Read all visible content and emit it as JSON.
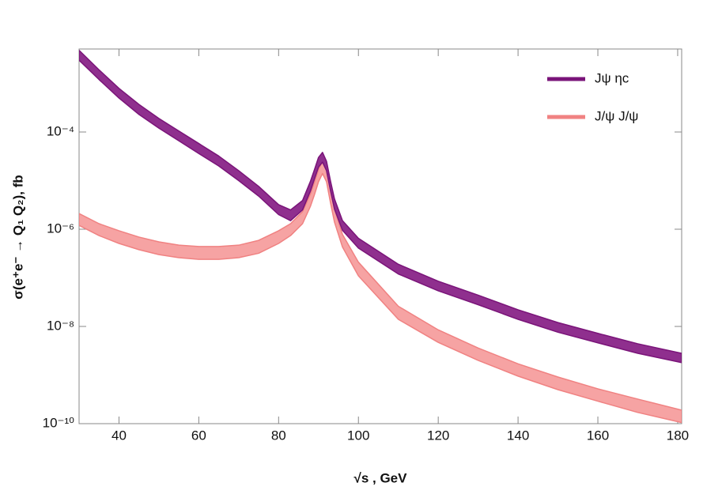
{
  "chart_data": {
    "type": "band",
    "x_label": "√s , GeV",
    "y_label": "σ(e⁺e⁻ → Q₁ Q₂), fb",
    "log_y": true,
    "legend": "upper right",
    "xlim": [
      30,
      181
    ],
    "ylim": [
      1e-10,
      0.0051
    ],
    "xticks": [
      40,
      60,
      80,
      100,
      120,
      140,
      160,
      180
    ],
    "yticks": [
      {
        "value": 1e-10,
        "label": "10⁻¹⁰"
      },
      {
        "value": 1e-08,
        "label": "10⁻⁸"
      },
      {
        "value": 1e-06,
        "label": "10⁻⁶"
      },
      {
        "value": 0.0001,
        "label": "10⁻⁴"
      }
    ],
    "x": [
      30,
      35,
      40,
      45,
      50,
      55,
      60,
      65,
      70,
      75,
      80,
      83,
      86,
      88,
      89,
      90,
      91,
      92,
      93,
      94,
      96,
      100,
      110,
      120,
      130,
      140,
      150,
      160,
      170,
      181
    ],
    "series": [
      {
        "name": "Jψ ηc",
        "color": "#7a1479",
        "fill": "#8f2f8e",
        "high": [
          0.0048,
          0.0019,
          0.00079,
          0.00037,
          0.00019,
          0.000105,
          5.8e-05,
          3.2e-05,
          1.6e-05,
          7.6e-06,
          3.2e-06,
          2.5e-06,
          3.9e-06,
          9.8e-06,
          1.7e-05,
          3e-05,
          3.8e-05,
          2.5e-05,
          9.8e-06,
          4.2e-06,
          1.5e-06,
          6.5e-07,
          1.9e-07,
          8.5e-08,
          4.4e-08,
          2.2e-08,
          1.2e-08,
          7.2e-09,
          4.4e-09,
          2.8e-09
        ],
        "low": [
          0.003,
          0.0012,
          0.0005,
          0.00023,
          0.00012,
          6.6e-05,
          3.6e-05,
          2e-05,
          1e-05,
          4.8e-06,
          2e-06,
          1.5e-06,
          2.5e-06,
          6.2e-06,
          1.1e-05,
          1.9e-05,
          2.4e-05,
          1.6e-05,
          6.2e-06,
          2.6e-06,
          9.5e-07,
          4.1e-07,
          1.2e-07,
          5.4e-08,
          2.8e-08,
          1.4e-08,
          7.6e-09,
          4.6e-09,
          2.8e-09,
          1.8e-09
        ]
      },
      {
        "name": "J/ψ J/ψ",
        "color": "#f08282",
        "fill": "#f6a3a3",
        "high": [
          2.1e-06,
          1.3e-06,
          9.3e-07,
          6.9e-07,
          5.5e-07,
          4.7e-07,
          4.4e-07,
          4.4e-07,
          4.7e-07,
          5.9e-07,
          9.3e-07,
          1.3e-06,
          2.3e-06,
          5.4e-06,
          9.5e-06,
          1.7e-05,
          2.5e-05,
          1.7e-05,
          6.5e-06,
          2.6e-06,
          7.8e-07,
          2.1e-07,
          2.6e-08,
          8.5e-09,
          3.6e-09,
          1.7e-09,
          9.1e-10,
          5.2e-10,
          3.2e-10,
          1.9e-10
        ],
        "low": [
          1.2e-06,
          7.4e-07,
          5.1e-07,
          3.8e-07,
          3e-07,
          2.6e-07,
          2.4e-07,
          2.4e-07,
          2.6e-07,
          3.2e-07,
          5.1e-07,
          7.4e-07,
          1.3e-06,
          3e-06,
          5.2e-06,
          9.5e-06,
          1.4e-05,
          9.5e-06,
          3.5e-06,
          1.4e-06,
          4.3e-07,
          1.1e-07,
          1.4e-08,
          4.7e-09,
          2e-09,
          9.5e-10,
          5e-10,
          2.9e-10,
          1.7e-10,
          1.05e-10
        ]
      }
    ]
  }
}
